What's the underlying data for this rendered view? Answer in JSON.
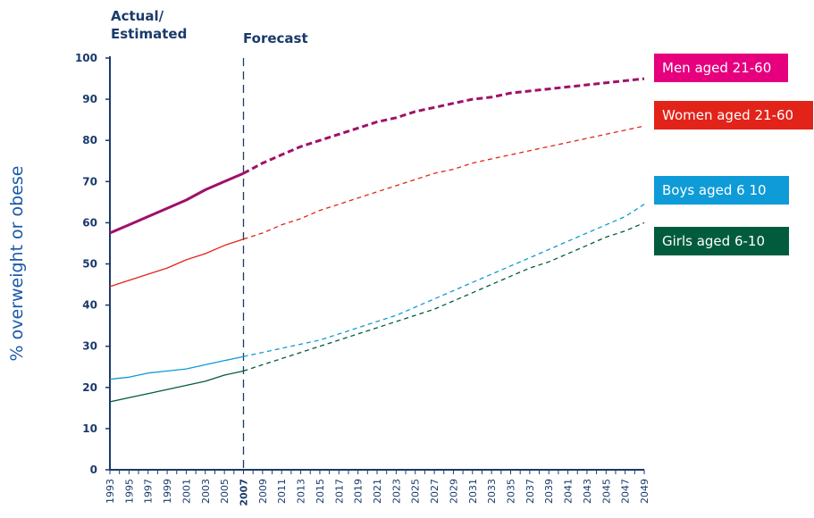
{
  "chart_data": {
    "type": "line",
    "ylabel": "% overweight or obese",
    "xlabel": "",
    "ylim": [
      0,
      100
    ],
    "yticks": [
      0,
      10,
      20,
      30,
      40,
      50,
      60,
      70,
      80,
      90,
      100
    ],
    "xticks": [
      "1993",
      "1995",
      "1997",
      "1999",
      "2001",
      "2003",
      "2005",
      "2007",
      "2009",
      "2011",
      "2013",
      "2015",
      "2017",
      "2019",
      "2021",
      "2023",
      "2025",
      "2027",
      "2029",
      "2031",
      "2033",
      "2035",
      "2037",
      "2039",
      "2041",
      "2043",
      "2045",
      "2047",
      "2049"
    ],
    "highlight_tick": "2007",
    "divider_year": 2007,
    "section_labels": {
      "actual": "Actual/\nEstimated",
      "forecast": "Forecast"
    },
    "grid": false,
    "legend_placement": "right, beside line ends",
    "series": [
      {
        "name": "Men aged 21-60",
        "color": "#a0106a",
        "label_bg": "#e6007e",
        "line_width": 3,
        "actual": [
          [
            1993,
            57.5
          ],
          [
            1995,
            59.5
          ],
          [
            1997,
            61.5
          ],
          [
            1999,
            63.5
          ],
          [
            2001,
            65.5
          ],
          [
            2003,
            68
          ],
          [
            2005,
            70
          ],
          [
            2007,
            72
          ]
        ],
        "forecast": [
          [
            2007,
            72
          ],
          [
            2009,
            74.5
          ],
          [
            2011,
            76.5
          ],
          [
            2013,
            78.5
          ],
          [
            2015,
            80
          ],
          [
            2017,
            81.5
          ],
          [
            2019,
            83
          ],
          [
            2021,
            84.5
          ],
          [
            2023,
            85.5
          ],
          [
            2025,
            87
          ],
          [
            2027,
            88
          ],
          [
            2029,
            89
          ],
          [
            2031,
            90
          ],
          [
            2033,
            90.5
          ],
          [
            2035,
            91.5
          ],
          [
            2037,
            92
          ],
          [
            2039,
            92.5
          ],
          [
            2041,
            93
          ],
          [
            2043,
            93.5
          ],
          [
            2045,
            94
          ],
          [
            2047,
            94.5
          ],
          [
            2049,
            95
          ]
        ]
      },
      {
        "name": "Women aged 21-60",
        "color": "#e2231a",
        "label_bg": "#e2231a",
        "line_width": 1.3,
        "actual": [
          [
            1993,
            44.5
          ],
          [
            1995,
            46
          ],
          [
            1997,
            47.5
          ],
          [
            1999,
            49
          ],
          [
            2001,
            51
          ],
          [
            2003,
            52.5
          ],
          [
            2005,
            54.5
          ],
          [
            2007,
            56
          ]
        ],
        "forecast": [
          [
            2007,
            56
          ],
          [
            2009,
            57.5
          ],
          [
            2011,
            59.5
          ],
          [
            2013,
            61
          ],
          [
            2015,
            63
          ],
          [
            2017,
            64.5
          ],
          [
            2019,
            66
          ],
          [
            2021,
            67.5
          ],
          [
            2023,
            69
          ],
          [
            2025,
            70.5
          ],
          [
            2027,
            72
          ],
          [
            2029,
            73
          ],
          [
            2031,
            74.5
          ],
          [
            2033,
            75.5
          ],
          [
            2035,
            76.5
          ],
          [
            2037,
            77.5
          ],
          [
            2039,
            78.5
          ],
          [
            2041,
            79.5
          ],
          [
            2043,
            80.5
          ],
          [
            2045,
            81.5
          ],
          [
            2047,
            82.5
          ],
          [
            2049,
            83.5
          ]
        ]
      },
      {
        "name": "Boys aged 6  10",
        "color": "#0e9bd7",
        "label_bg": "#0e9bd7",
        "line_width": 1.3,
        "actual": [
          [
            1993,
            22
          ],
          [
            1995,
            22.5
          ],
          [
            1997,
            23.5
          ],
          [
            1999,
            24
          ],
          [
            2001,
            24.5
          ],
          [
            2003,
            25.5
          ],
          [
            2005,
            26.5
          ],
          [
            2007,
            27.5
          ]
        ],
        "forecast": [
          [
            2007,
            27.5
          ],
          [
            2009,
            28.5
          ],
          [
            2011,
            29.5
          ],
          [
            2013,
            30.5
          ],
          [
            2015,
            31.5
          ],
          [
            2017,
            33
          ],
          [
            2019,
            34.5
          ],
          [
            2021,
            36
          ],
          [
            2023,
            37.5
          ],
          [
            2025,
            39.5
          ],
          [
            2027,
            41.5
          ],
          [
            2029,
            43.5
          ],
          [
            2031,
            45.5
          ],
          [
            2033,
            47.5
          ],
          [
            2035,
            49.5
          ],
          [
            2037,
            51.5
          ],
          [
            2039,
            53.5
          ],
          [
            2041,
            55.5
          ],
          [
            2043,
            57.5
          ],
          [
            2045,
            59.5
          ],
          [
            2047,
            61.5
          ],
          [
            2049,
            64.5
          ]
        ]
      },
      {
        "name": "Girls aged 6-10",
        "color": "#005c3c",
        "label_bg": "#005c3c",
        "line_width": 1.3,
        "actual": [
          [
            1993,
            16.5
          ],
          [
            1995,
            17.5
          ],
          [
            1997,
            18.5
          ],
          [
            1999,
            19.5
          ],
          [
            2001,
            20.5
          ],
          [
            2003,
            21.5
          ],
          [
            2005,
            23
          ],
          [
            2007,
            24
          ]
        ],
        "forecast": [
          [
            2007,
            24
          ],
          [
            2009,
            25.5
          ],
          [
            2011,
            27
          ],
          [
            2013,
            28.5
          ],
          [
            2015,
            30
          ],
          [
            2017,
            31.5
          ],
          [
            2019,
            33
          ],
          [
            2021,
            34.5
          ],
          [
            2023,
            36
          ],
          [
            2025,
            37.5
          ],
          [
            2027,
            39
          ],
          [
            2029,
            41
          ],
          [
            2031,
            43
          ],
          [
            2033,
            45
          ],
          [
            2035,
            47
          ],
          [
            2037,
            49
          ],
          [
            2039,
            50.5
          ],
          [
            2041,
            52.5
          ],
          [
            2043,
            54.5
          ],
          [
            2045,
            56.5
          ],
          [
            2047,
            58
          ],
          [
            2049,
            60
          ]
        ]
      }
    ]
  }
}
